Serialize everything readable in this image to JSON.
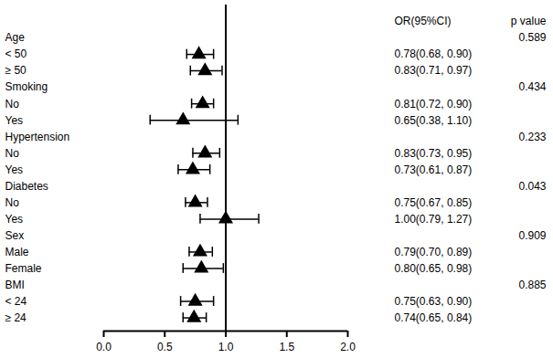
{
  "chart_data": {
    "type": "forest",
    "marker": "triangle",
    "color": "#000000",
    "categories": [
      "Age",
      "< 50",
      "≥ 50",
      "Smoking",
      "No",
      "Yes",
      "Hypertension",
      "No",
      "Yes",
      "Diabetes",
      "No",
      "Yes",
      "Sex",
      "Male",
      "Female",
      "BMI",
      "< 24",
      "≥ 24"
    ],
    "values": [
      null,
      0.78,
      0.83,
      null,
      0.81,
      0.65,
      null,
      0.83,
      0.73,
      null,
      0.75,
      1.0,
      null,
      0.79,
      0.8,
      null,
      0.75,
      0.74
    ],
    "ci_lower": [
      null,
      0.68,
      0.71,
      null,
      0.72,
      0.38,
      null,
      0.73,
      0.61,
      null,
      0.67,
      0.79,
      null,
      0.7,
      0.65,
      null,
      0.63,
      0.65
    ],
    "ci_upper": [
      null,
      0.9,
      0.97,
      null,
      0.9,
      1.1,
      null,
      0.95,
      0.87,
      null,
      0.85,
      1.27,
      null,
      0.89,
      0.98,
      null,
      0.9,
      0.84
    ],
    "value_labels": [
      null,
      "0.78(0.68, 0.90)",
      "0.83(0.71, 0.97)",
      null,
      "0.81(0.72, 0.90)",
      "0.65(0.38, 1.10)",
      null,
      "0.83(0.73, 0.95)",
      "0.73(0.61, 0.87)",
      null,
      "0.75(0.67, 0.85)",
      "1.00(0.79, 1.27)",
      null,
      "0.79(0.70, 0.89)",
      "0.80(0.65, 0.98)",
      null,
      "0.75(0.63, 0.90)",
      "0.74(0.65, 0.84)"
    ],
    "p_values": [
      0.589,
      null,
      null,
      0.434,
      null,
      null,
      0.233,
      null,
      null,
      0.043,
      null,
      null,
      0.909,
      null,
      null,
      0.885,
      null,
      null
    ],
    "column_headers": [
      "OR(95%CI)",
      "p value"
    ],
    "reference_line": 1,
    "xlim": [
      0,
      2
    ],
    "xticks": [
      {
        "value": 0,
        "label": "0.0"
      },
      {
        "value": 0.5,
        "label": "0.5"
      },
      {
        "value": 1,
        "label": "1.0"
      },
      {
        "value": 1.5,
        "label": "1.5"
      },
      {
        "value": 2,
        "label": "2.0"
      }
    ]
  }
}
